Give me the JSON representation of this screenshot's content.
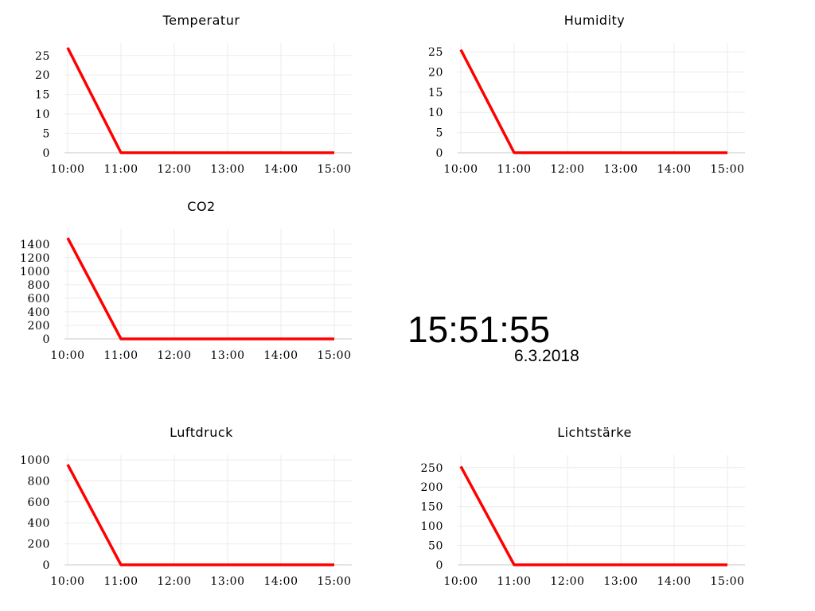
{
  "chart_data": [
    {
      "type": "line",
      "title": "Temperatur",
      "xlabel": "",
      "ylabel": "",
      "x": [
        "10:00",
        "11:00",
        "12:00",
        "13:00",
        "14:00",
        "15:00"
      ],
      "xlim": [
        "10:00",
        "15:00"
      ],
      "ylim": [
        0,
        27
      ],
      "yticks": [
        0,
        5,
        10,
        15,
        20,
        25
      ],
      "grid": true,
      "series": [
        {
          "color": "#ff0000",
          "points": [
            [
              "10:00",
              27
            ],
            [
              "11:00",
              0
            ],
            [
              "15:00",
              0
            ]
          ]
        }
      ]
    },
    {
      "type": "line",
      "title": "Humidity",
      "xlabel": "",
      "ylabel": "",
      "x": [
        "10:00",
        "11:00",
        "12:00",
        "13:00",
        "14:00",
        "15:00"
      ],
      "xlim": [
        "10:00",
        "15:00"
      ],
      "ylim": [
        0,
        26
      ],
      "yticks": [
        0,
        5,
        10,
        15,
        20,
        25
      ],
      "grid": true,
      "series": [
        {
          "color": "#ff0000",
          "points": [
            [
              "10:00",
              25.5
            ],
            [
              "11:00",
              0
            ],
            [
              "15:00",
              0
            ]
          ]
        }
      ]
    },
    {
      "type": "line",
      "title": "CO2",
      "xlabel": "",
      "ylabel": "",
      "x": [
        "10:00",
        "11:00",
        "12:00",
        "13:00",
        "14:00",
        "15:00"
      ],
      "xlim": [
        "10:00",
        "15:00"
      ],
      "ylim": [
        0,
        1550
      ],
      "yticks": [
        0,
        200,
        400,
        600,
        800,
        1000,
        1200,
        1400
      ],
      "grid": true,
      "series": [
        {
          "color": "#ff0000",
          "points": [
            [
              "10:00",
              1490
            ],
            [
              "11:00",
              0
            ],
            [
              "15:00",
              0
            ]
          ]
        }
      ]
    },
    {
      "type": "line",
      "title": "Luftdruck",
      "xlabel": "",
      "ylabel": "",
      "x": [
        "10:00",
        "11:00",
        "12:00",
        "13:00",
        "14:00",
        "15:00"
      ],
      "xlim": [
        "10:00",
        "15:00"
      ],
      "ylim": [
        0,
        1000
      ],
      "yticks": [
        0,
        200,
        400,
        600,
        800,
        1000
      ],
      "grid": true,
      "series": [
        {
          "color": "#ff0000",
          "points": [
            [
              "10:00",
              955
            ],
            [
              "11:00",
              0
            ],
            [
              "15:00",
              0
            ]
          ]
        }
      ]
    },
    {
      "type": "line",
      "title": "Lichtstärke",
      "xlabel": "",
      "ylabel": "",
      "x": [
        "10:00",
        "11:00",
        "12:00",
        "13:00",
        "14:00",
        "15:00"
      ],
      "xlim": [
        "10:00",
        "15:00"
      ],
      "ylim": [
        0,
        270
      ],
      "yticks": [
        0,
        50,
        100,
        150,
        200,
        250
      ],
      "grid": true,
      "series": [
        {
          "color": "#ff0000",
          "points": [
            [
              "10:00",
              253
            ],
            [
              "11:00",
              0
            ],
            [
              "15:00",
              0
            ]
          ]
        }
      ]
    }
  ],
  "clock": {
    "time": "15:51:55",
    "date": "6.3.2018"
  },
  "colors": {
    "series": "#ff0000",
    "grid": "#ebebeb",
    "axis": "#c8c8c8",
    "text": "#000000"
  }
}
